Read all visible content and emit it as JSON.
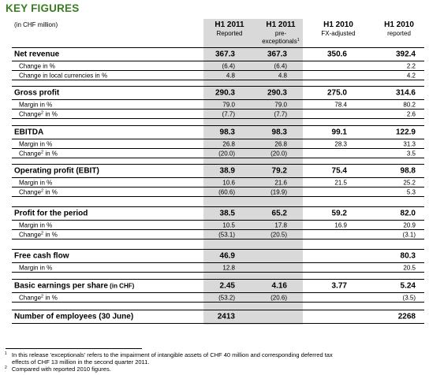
{
  "title": "KEY FIGURES",
  "unit": "(in CHF million)",
  "columns": [
    {
      "year": "H1 2011",
      "desc": "Reported",
      "sup": ""
    },
    {
      "year": "H1 2011",
      "desc": "pre-",
      "desc2": "exceptionals",
      "sup": "1"
    },
    {
      "year": "H1 2010",
      "desc": "FX-adjusted",
      "sup": ""
    },
    {
      "year": "H1 2010",
      "desc": "reported",
      "sup": ""
    }
  ],
  "blocks": [
    {
      "label": "Net revenue",
      "values": [
        "367.3",
        "367.3",
        "350.6",
        "392.4"
      ],
      "subs": [
        {
          "label": "Change in %",
          "sup": "",
          "values": [
            "(6.4)",
            "(6.4)",
            "",
            "2.2"
          ]
        },
        {
          "label": "Change in local currencies in %",
          "sup": "",
          "values": [
            "4.8",
            "4.8",
            "",
            "4.2"
          ]
        }
      ]
    },
    {
      "label": "Gross profit",
      "values": [
        "290.3",
        "290.3",
        "275.0",
        "314.6"
      ],
      "subs": [
        {
          "label": "Margin in %",
          "sup": "",
          "values": [
            "79.0",
            "79.0",
            "78.4",
            "80.2"
          ]
        },
        {
          "label": "Change",
          "sup": "2",
          "label_rest": " in %",
          "values": [
            "(7.7)",
            "(7.7)",
            "",
            "2.6"
          ]
        }
      ]
    },
    {
      "label": "EBITDA",
      "values": [
        "98.3",
        "98.3",
        "99.1",
        "122.9"
      ],
      "subs": [
        {
          "label": "Margin in %",
          "sup": "",
          "values": [
            "26.8",
            "26.8",
            "28.3",
            "31.3"
          ]
        },
        {
          "label": "Change",
          "sup": "2",
          "label_rest": " in %",
          "values": [
            "(20.0)",
            "(20.0)",
            "",
            "3.5"
          ]
        }
      ]
    },
    {
      "label": "Operating profit (EBIT)",
      "values": [
        "38.9",
        "79.2",
        "75.4",
        "98.8"
      ],
      "subs": [
        {
          "label": "Margin in %",
          "sup": "",
          "values": [
            "10.6",
            "21.6",
            "21.5",
            "25.2"
          ]
        },
        {
          "label": "Change",
          "sup": "2",
          "label_rest": " in %",
          "values": [
            "(60.6)",
            "(19.9)",
            "",
            "5.3"
          ]
        }
      ]
    },
    {
      "label": "Profit for the period",
      "values": [
        "38.5",
        "65.2",
        "59.2",
        "82.0"
      ],
      "subs": [
        {
          "label": "Margin in %",
          "sup": "",
          "values": [
            "10.5",
            "17.8",
            "16.9",
            "20.9"
          ]
        },
        {
          "label": "Change",
          "sup": "2",
          "label_rest": " in %",
          "values": [
            "(53.1)",
            "(20.5)",
            "",
            "(3.1)"
          ]
        }
      ]
    },
    {
      "label": "Free cash flow",
      "values": [
        "46.9",
        "",
        "",
        "80.3"
      ],
      "subs": [
        {
          "label": "Margin in %",
          "sup": "",
          "values": [
            "12.8",
            "",
            "",
            "20.5"
          ]
        }
      ]
    },
    {
      "label": "Basic earnings per share",
      "label_small": " (in CHF)",
      "values": [
        "2.45",
        "4.16",
        "3.77",
        "5.24"
      ],
      "subs": [
        {
          "label": "Change",
          "sup": "2",
          "label_rest": " in %",
          "values": [
            "(53.2)",
            "(20.6)",
            "",
            "(3.5)"
          ]
        }
      ]
    },
    {
      "label": "Number of employees (30 June)",
      "values": [
        "2413",
        "",
        "",
        "2268"
      ],
      "subs": []
    }
  ],
  "footnotes": [
    {
      "num": "1",
      "text": "In this release 'exceptionals' refers to the impairment of intangible assets of CHF 40 million and corresponding deferred tax",
      "text2": "effects of CHF 13 million in the second quarter 2011."
    },
    {
      "num": "2",
      "text": "Compared with reported 2010 figures."
    }
  ]
}
